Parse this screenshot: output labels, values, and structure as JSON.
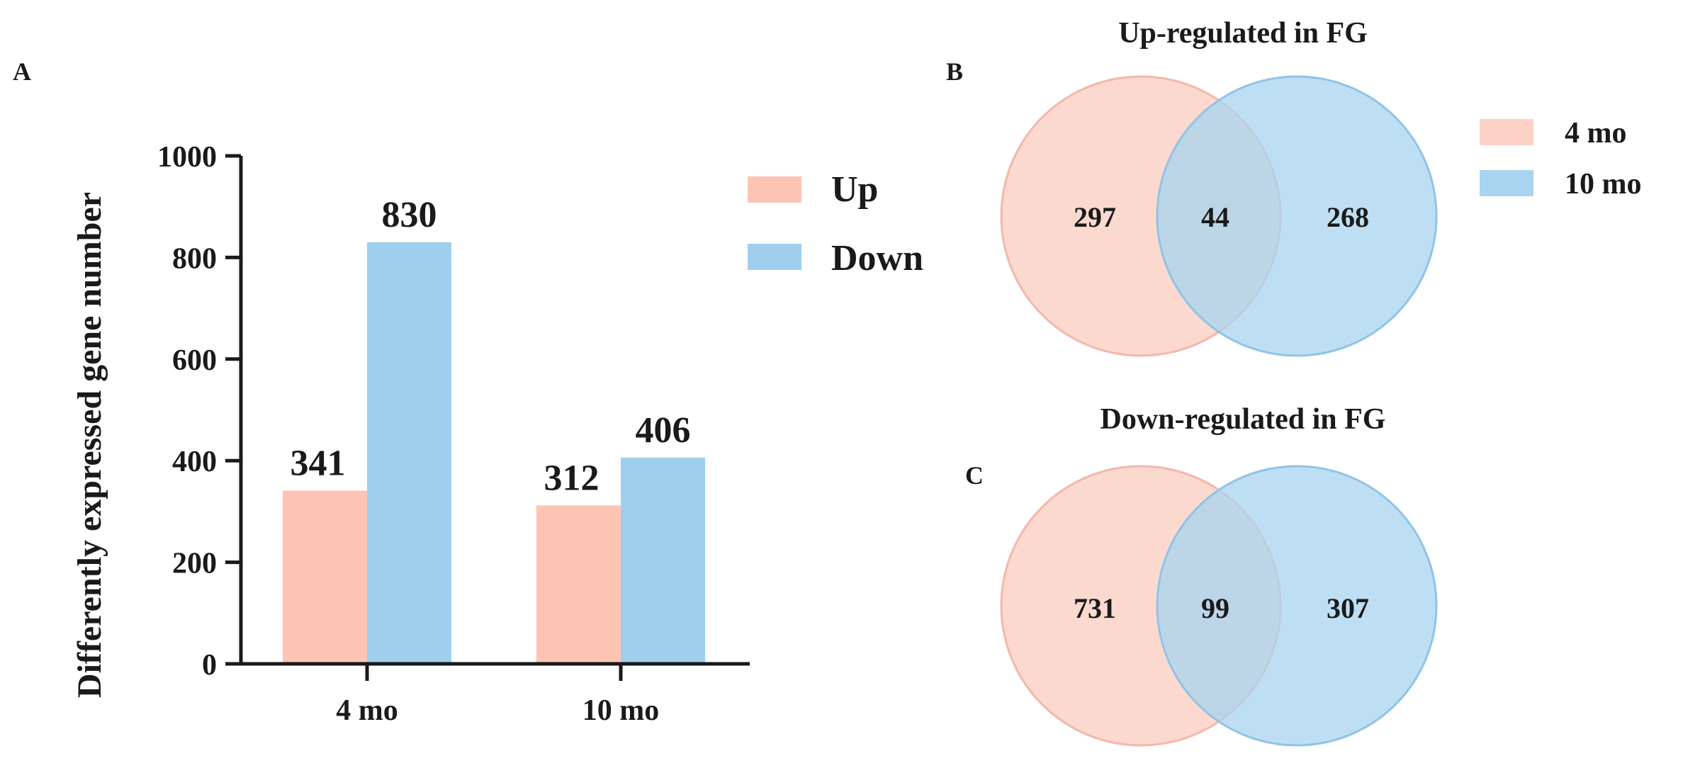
{
  "panels": {
    "a": "A",
    "b": "B",
    "c": "C"
  },
  "colors": {
    "up": "#fdc4b4",
    "down": "#9fcfec",
    "venn_red": "#fcd2c7",
    "venn_blue": "#a8d4ef",
    "venn_red_stroke": "#f4b7ab",
    "venn_blue_stroke": "#8fc4e6"
  },
  "chart_data": [
    {
      "type": "bar",
      "title": "",
      "xlabel": "",
      "ylabel": "Differently expressed gene number",
      "categories": [
        "4 mo",
        "10 mo"
      ],
      "series": [
        {
          "name": "Up",
          "values": [
            341,
            312
          ]
        },
        {
          "name": "Down",
          "values": [
            830,
            406
          ]
        }
      ],
      "yticks": [
        0,
        200,
        400,
        600,
        800,
        1000
      ],
      "ylim": [
        0,
        1000
      ],
      "grid": false,
      "legend": "top-right",
      "data_labels": true
    },
    {
      "type": "venn",
      "title": "Up-regulated in FG",
      "sets": [
        "4 mo",
        "10 mo"
      ],
      "regions": {
        "only_4mo": "297",
        "both": "44",
        "only_10mo": "268"
      },
      "legend": "right"
    },
    {
      "type": "venn",
      "title": "Down-regulated in FG",
      "sets": [
        "4 mo",
        "10 mo"
      ],
      "regions": {
        "only_4mo": "731",
        "both": "99",
        "only_10mo": "307"
      }
    }
  ]
}
